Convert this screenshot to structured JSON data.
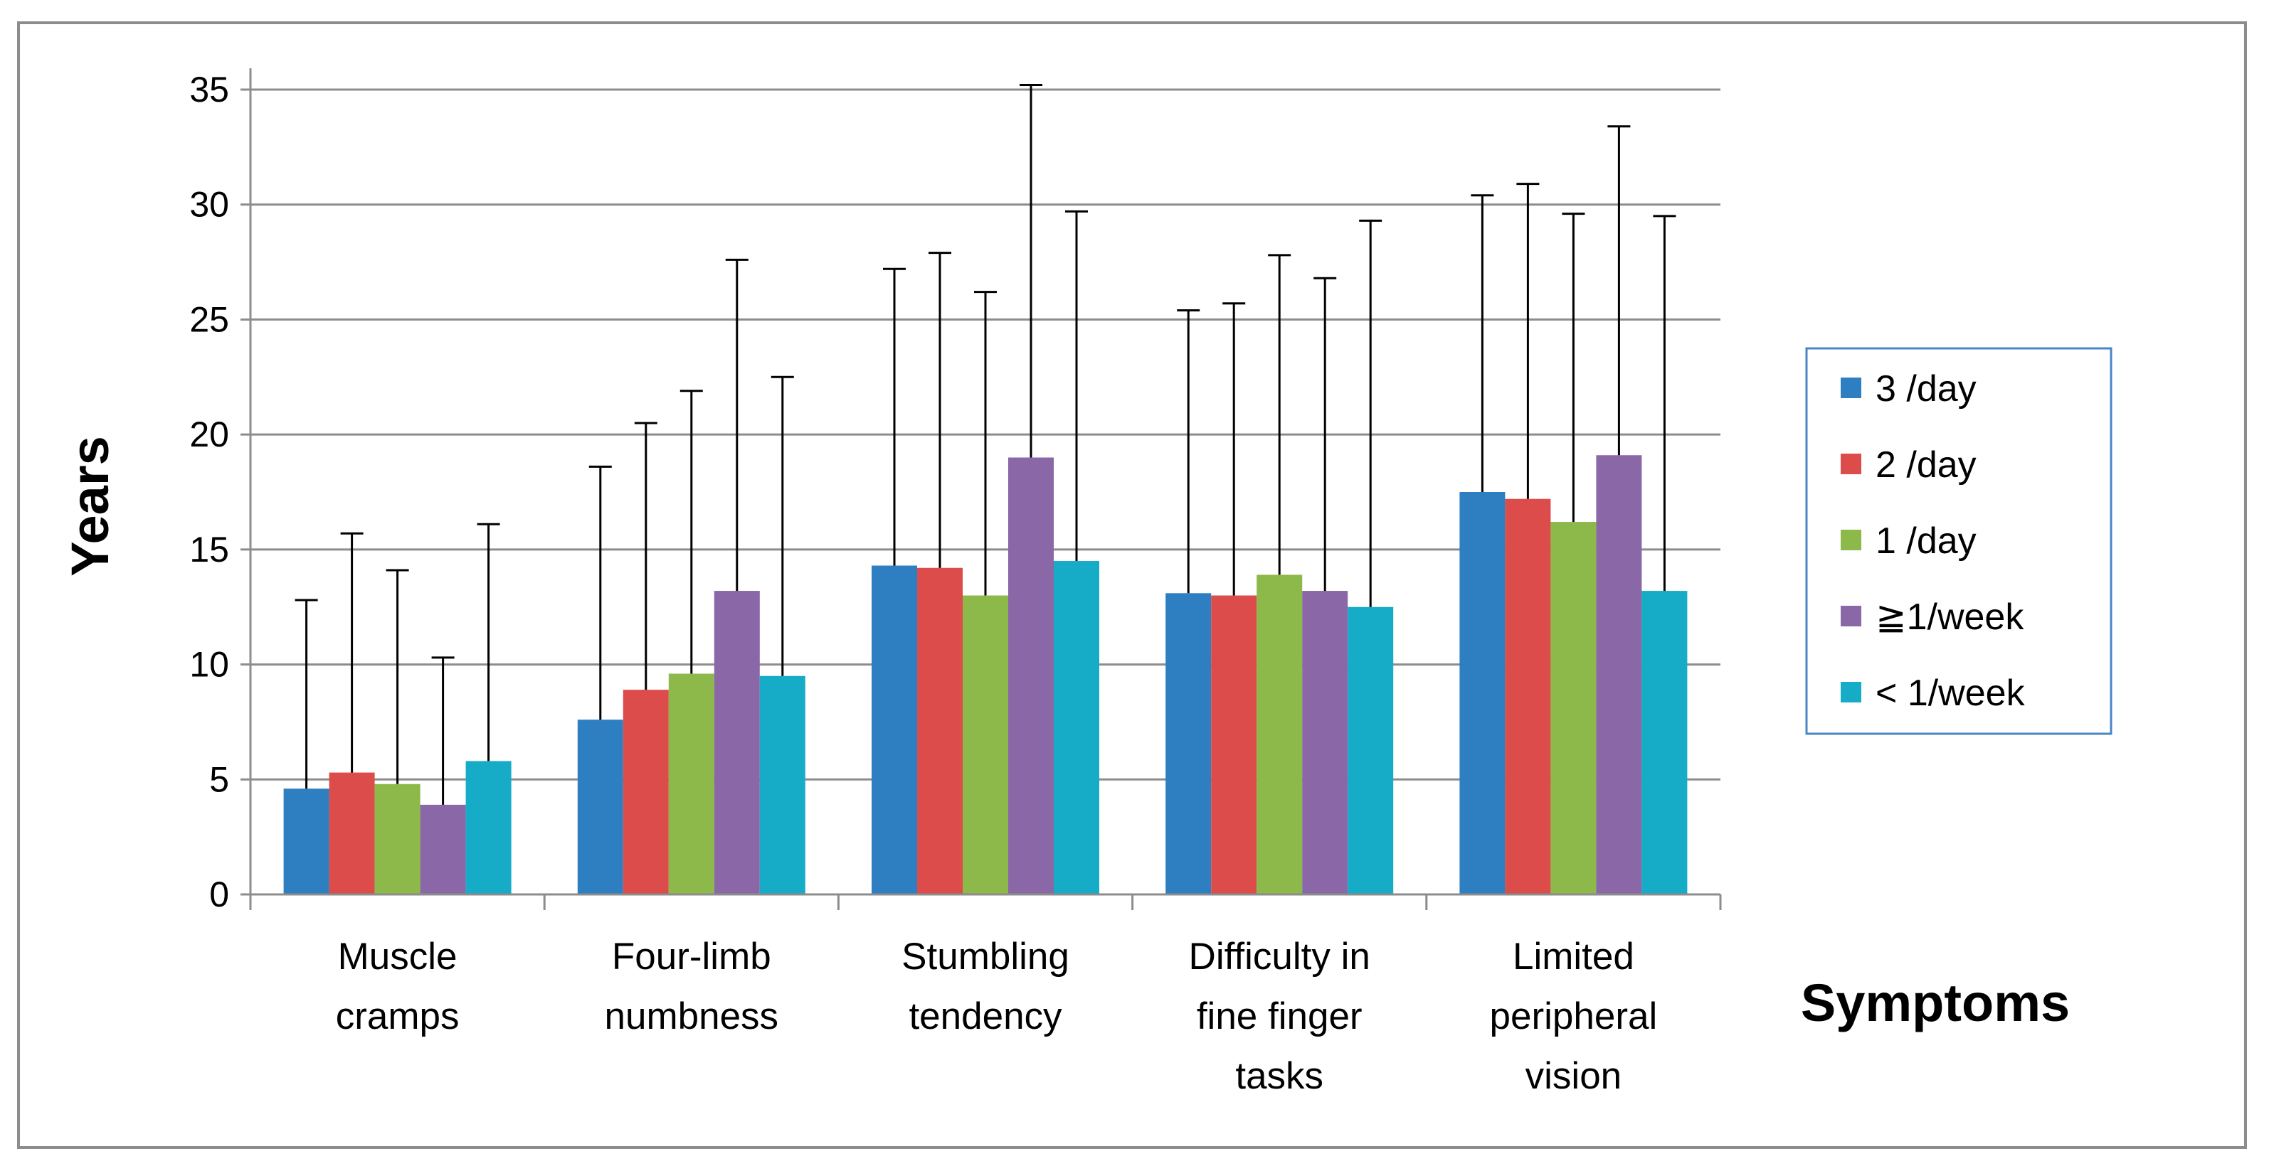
{
  "chart_data": {
    "type": "bar",
    "title": "",
    "xlabel": "Symptoms",
    "ylabel": "Years",
    "ylim": [
      0,
      35
    ],
    "yticks": [
      0,
      5,
      10,
      15,
      20,
      25,
      30,
      35
    ],
    "grid": true,
    "legend_position": "right",
    "categories": [
      [
        "Muscle",
        "cramps"
      ],
      [
        "Four-limb",
        "numbness"
      ],
      [
        "Stumbling",
        "tendency"
      ],
      [
        "Difficulty in",
        "fine finger",
        "tasks"
      ],
      [
        "Limited",
        "peripheral",
        "vision"
      ]
    ],
    "series": [
      {
        "name": "3 /day",
        "color": "#2e7fc1",
        "values": [
          4.6,
          7.6,
          14.3,
          13.1,
          17.5
        ],
        "error_upper": [
          12.8,
          18.6,
          27.2,
          25.4,
          30.4
        ]
      },
      {
        "name": "2 /day",
        "color": "#db4c4a",
        "values": [
          5.3,
          8.9,
          14.2,
          13.0,
          17.2
        ],
        "error_upper": [
          15.7,
          20.5,
          27.9,
          25.7,
          30.9
        ]
      },
      {
        "name": "1 /day",
        "color": "#8db84a",
        "values": [
          4.8,
          9.6,
          13.0,
          13.9,
          16.2
        ],
        "error_upper": [
          14.1,
          21.9,
          26.2,
          27.8,
          29.6
        ]
      },
      {
        "name": "≧1/week",
        "color": "#8a67a6",
        "values": [
          3.9,
          13.2,
          19.0,
          13.2,
          19.1
        ],
        "error_upper": [
          10.3,
          27.6,
          35.2,
          26.8,
          33.4
        ]
      },
      {
        "name": "< 1/week",
        "color": "#16acc8",
        "values": [
          5.8,
          9.5,
          14.5,
          12.5,
          13.2
        ],
        "error_upper": [
          16.1,
          22.5,
          29.7,
          29.3,
          29.5
        ]
      }
    ]
  }
}
